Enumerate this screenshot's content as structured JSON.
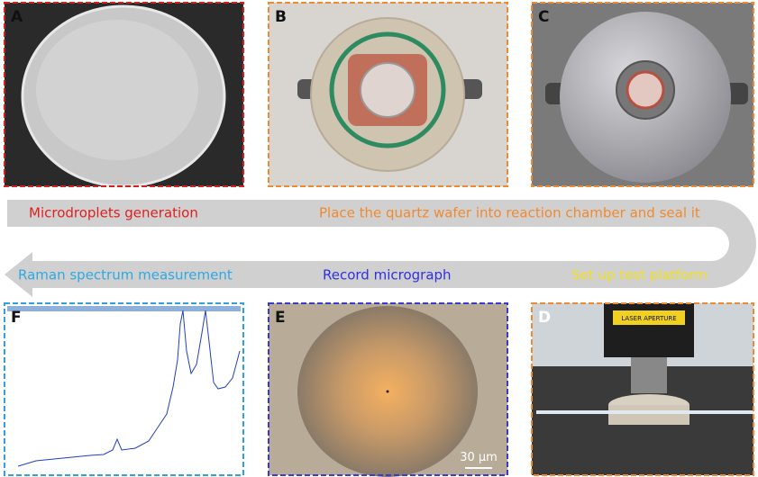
{
  "panels": [
    {
      "letter": "A"
    },
    {
      "letter": "B"
    },
    {
      "letter": "C"
    },
    {
      "letter": "D",
      "photo_label": "LASER APERTURE"
    },
    {
      "letter": "E",
      "scale_bar": "30 μm"
    },
    {
      "letter": "F"
    }
  ],
  "steps": [
    "Microdroplets generation",
    "Place the quartz wafer into reaction chamber and seal it",
    "Set up test platform",
    "Record micrograph",
    "Raman spectrum measurement"
  ]
}
